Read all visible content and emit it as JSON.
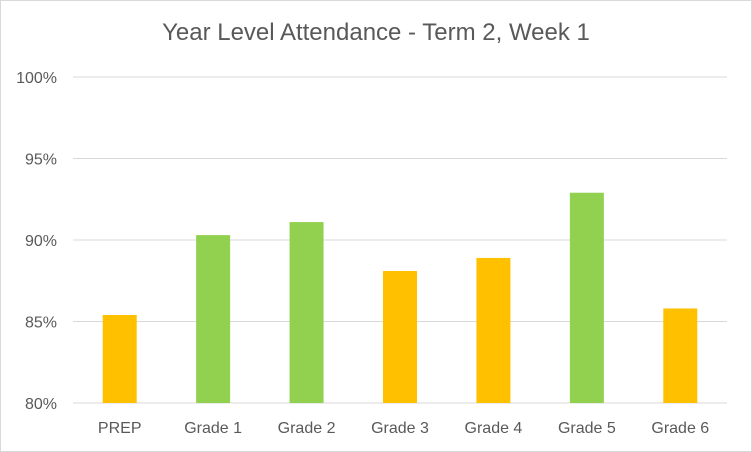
{
  "chart_data": {
    "type": "bar",
    "title": "Year Level Attendance - Term 2, Week 1",
    "xlabel": "",
    "ylabel": "",
    "categories": [
      "PREP",
      "Grade 1",
      "Grade 2",
      "Grade 3",
      "Grade 4",
      "Grade 5",
      "Grade 6"
    ],
    "values": [
      85.4,
      90.3,
      91.1,
      88.1,
      88.9,
      92.9,
      85.8
    ],
    "bar_colors": [
      "#FFC000",
      "#92D050",
      "#92D050",
      "#FFC000",
      "#FFC000",
      "#92D050",
      "#FFC000"
    ],
    "ylim": [
      80,
      100
    ],
    "yticks": [
      80,
      85,
      90,
      95,
      100
    ],
    "ytick_labels": [
      "80%",
      "85%",
      "90%",
      "95%",
      "100%"
    ],
    "grid": true,
    "legend": "none",
    "colors": {
      "gridline": "#d9d9d9",
      "text": "#595959"
    }
  }
}
